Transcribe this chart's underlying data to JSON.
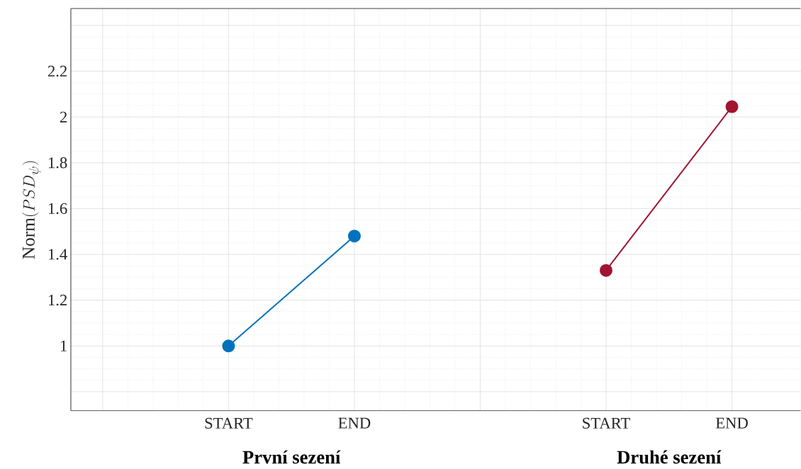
{
  "chart_data": {
    "type": "line",
    "ylabel": "\\mathrm{Norm}(PSD_{\\psi})",
    "categories": [
      null,
      "START",
      "END",
      null,
      "START",
      "END"
    ],
    "ylim": [
      0.717,
      2.474
    ],
    "yticks": [
      {
        "value": 0.8,
        "label": null
      },
      1,
      1.2,
      1.4,
      1.6,
      1.8,
      2,
      2.2,
      {
        "value": 2.4,
        "label": null
      }
    ],
    "series": [
      {
        "color": "#0072bd",
        "values": [
          null,
          1.0,
          1.48,
          null,
          null,
          null
        ]
      },
      {
        "color": "#a2142f",
        "values": [
          null,
          null,
          null,
          null,
          1.33,
          2.045
        ]
      }
    ],
    "annotations": [
      "První sezení",
      "Druhé sezení"
    ],
    "grid": true,
    "marker": "circle",
    "line_style": "solid"
  }
}
